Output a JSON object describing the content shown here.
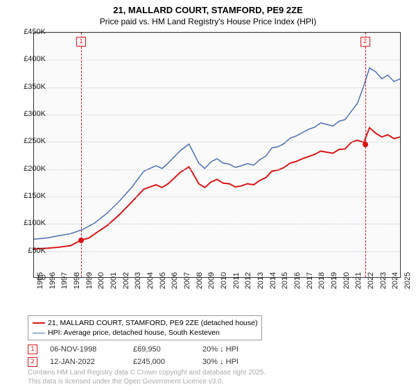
{
  "title_line1": "21, MALLARD COURT, STAMFORD, PE9 2ZE",
  "title_line2": "Price paid vs. HM Land Registry's House Price Index (HPI)",
  "chart": {
    "type": "line",
    "background_color": "#fafafa",
    "grid_color": "#cccccc",
    "axis_color": "#333333",
    "font_size_labels": 11,
    "y": {
      "min": 0,
      "max": 450000,
      "step": 50000,
      "ticks_text": [
        "£0",
        "£50K",
        "£100K",
        "£150K",
        "£200K",
        "£250K",
        "£300K",
        "£350K",
        "£400K",
        "£450K"
      ]
    },
    "x": {
      "min": 1995,
      "max": 2025,
      "labels": [
        "1995",
        "1996",
        "1997",
        "1998",
        "1999",
        "2000",
        "2001",
        "2002",
        "2003",
        "2004",
        "2005",
        "2006",
        "2007",
        "2008",
        "2009",
        "2010",
        "2011",
        "2012",
        "2013",
        "2014",
        "2015",
        "2016",
        "2017",
        "2018",
        "2019",
        "2020",
        "2021",
        "2022",
        "2023",
        "2024",
        "2025"
      ]
    },
    "series": [
      {
        "name": "21, MALLARD COURT, STAMFORD, PE9 2ZE (detached house)",
        "color": "#d91414",
        "line_width": 2,
        "data": [
          [
            1995,
            52000
          ],
          [
            1996,
            53000
          ],
          [
            1997,
            55000
          ],
          [
            1998,
            58000
          ],
          [
            1998.85,
            68000
          ],
          [
            1999.5,
            72000
          ],
          [
            2000,
            80000
          ],
          [
            2001,
            95000
          ],
          [
            2002,
            115000
          ],
          [
            2003,
            138000
          ],
          [
            2004,
            162000
          ],
          [
            2005,
            170000
          ],
          [
            2005.5,
            165000
          ],
          [
            2006,
            172000
          ],
          [
            2007,
            193000
          ],
          [
            2007.7,
            203000
          ],
          [
            2008,
            192000
          ],
          [
            2008.5,
            172000
          ],
          [
            2009,
            165000
          ],
          [
            2009.5,
            175000
          ],
          [
            2010,
            180000
          ],
          [
            2010.5,
            173000
          ],
          [
            2011,
            172000
          ],
          [
            2011.5,
            166000
          ],
          [
            2012,
            168000
          ],
          [
            2012.5,
            172000
          ],
          [
            2013,
            170000
          ],
          [
            2013.5,
            178000
          ],
          [
            2014,
            183000
          ],
          [
            2014.5,
            195000
          ],
          [
            2015,
            197000
          ],
          [
            2015.5,
            202000
          ],
          [
            2016,
            210000
          ],
          [
            2016.5,
            213000
          ],
          [
            2017,
            218000
          ],
          [
            2017.5,
            222000
          ],
          [
            2018,
            226000
          ],
          [
            2018.5,
            232000
          ],
          [
            2019,
            230000
          ],
          [
            2019.5,
            228000
          ],
          [
            2020,
            235000
          ],
          [
            2020.5,
            236000
          ],
          [
            2021,
            248000
          ],
          [
            2021.5,
            252000
          ],
          [
            2022.03,
            248000
          ],
          [
            2022.5,
            275000
          ],
          [
            2023,
            265000
          ],
          [
            2023.5,
            258000
          ],
          [
            2024,
            262000
          ],
          [
            2024.5,
            255000
          ],
          [
            2025,
            258000
          ]
        ]
      },
      {
        "name": "HPI: Average price, detached house, South Kesteven",
        "color": "#4a6fb3",
        "line_width": 1.5,
        "data": [
          [
            1995,
            70000
          ],
          [
            1996,
            72000
          ],
          [
            1997,
            76000
          ],
          [
            1998,
            80000
          ],
          [
            1999,
            88000
          ],
          [
            2000,
            100000
          ],
          [
            2001,
            118000
          ],
          [
            2002,
            140000
          ],
          [
            2003,
            165000
          ],
          [
            2004,
            195000
          ],
          [
            2005,
            205000
          ],
          [
            2005.5,
            200000
          ],
          [
            2006,
            210000
          ],
          [
            2007,
            233000
          ],
          [
            2007.7,
            245000
          ],
          [
            2008,
            232000
          ],
          [
            2008.5,
            210000
          ],
          [
            2009,
            200000
          ],
          [
            2009.5,
            212000
          ],
          [
            2010,
            218000
          ],
          [
            2010.5,
            210000
          ],
          [
            2011,
            208000
          ],
          [
            2011.5,
            202000
          ],
          [
            2012,
            205000
          ],
          [
            2012.5,
            209000
          ],
          [
            2013,
            206000
          ],
          [
            2013.5,
            216000
          ],
          [
            2014,
            223000
          ],
          [
            2014.5,
            238000
          ],
          [
            2015,
            240000
          ],
          [
            2015.5,
            246000
          ],
          [
            2016,
            256000
          ],
          [
            2016.5,
            260000
          ],
          [
            2017,
            266000
          ],
          [
            2017.5,
            272000
          ],
          [
            2018,
            276000
          ],
          [
            2018.5,
            284000
          ],
          [
            2019,
            281000
          ],
          [
            2019.5,
            278000
          ],
          [
            2020,
            287000
          ],
          [
            2020.5,
            290000
          ],
          [
            2021,
            305000
          ],
          [
            2021.5,
            320000
          ],
          [
            2022,
            350000
          ],
          [
            2022.5,
            385000
          ],
          [
            2023,
            378000
          ],
          [
            2023.5,
            365000
          ],
          [
            2024,
            372000
          ],
          [
            2024.5,
            360000
          ],
          [
            2025,
            365000
          ]
        ]
      }
    ],
    "markers": [
      {
        "label": "1",
        "x": 1998.85,
        "y": 69950,
        "color": "#d91414"
      },
      {
        "label": "2",
        "x": 2022.03,
        "y": 245000,
        "color": "#d91414"
      }
    ]
  },
  "legend": {
    "border_color": "#999999",
    "font_size": 10.5
  },
  "transactions": [
    {
      "marker": "1",
      "date": "06-NOV-1998",
      "price": "£69,950",
      "pct": "20% ↓ HPI",
      "color": "#d91414"
    },
    {
      "marker": "2",
      "date": "12-JAN-2022",
      "price": "£245,000",
      "pct": "30% ↓ HPI",
      "color": "#d91414"
    }
  ],
  "copyright_line1": "Contains HM Land Registry data © Crown copyright and database right 2025.",
  "copyright_line2": "This data is licensed under the Open Government Licence v3.0."
}
